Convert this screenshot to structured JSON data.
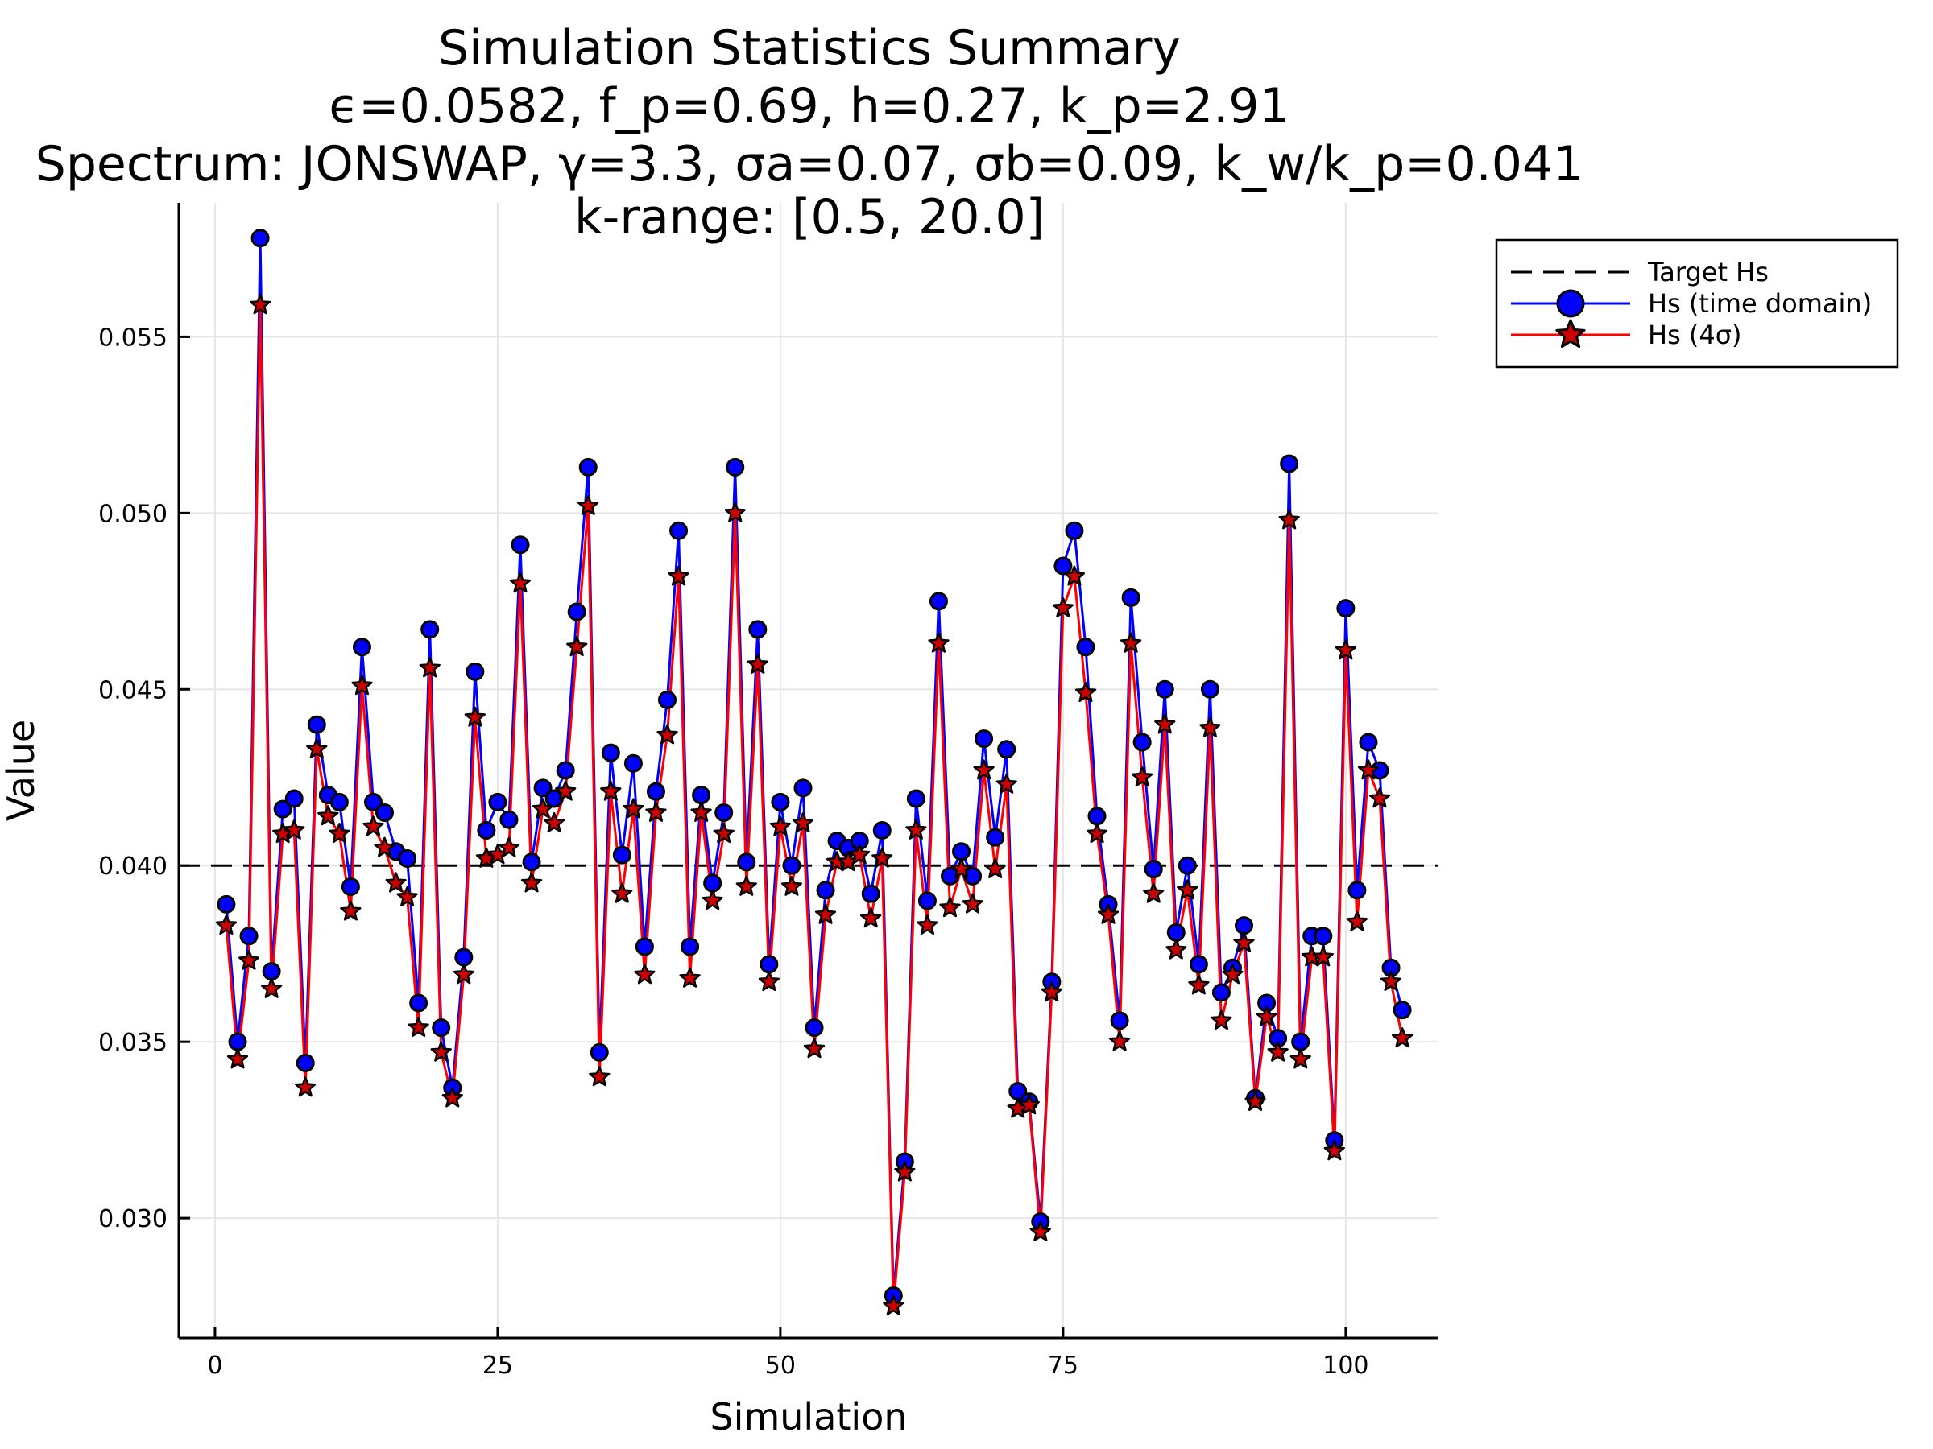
{
  "chart_data": {
    "type": "line",
    "title_lines": [
      "Simulation Statistics Summary",
      "ϵ=0.0582, f_p=0.69, h=0.27, k_p=2.91",
      "Spectrum: JONSWAP, γ=3.3, σa=0.07, σb=0.09, k_w/k_p=0.041",
      "k-range: [0.5, 20.0]"
    ],
    "xlabel": "Simulation",
    "ylabel": "Value",
    "xlim": [
      -3.2,
      108.2
    ],
    "ylim": [
      0.0266,
      0.0588
    ],
    "x_ticks": [
      0,
      25,
      50,
      75,
      100
    ],
    "x_tick_labels": [
      "0",
      "25",
      "50",
      "75",
      "100"
    ],
    "y_ticks": [
      0.03,
      0.035,
      0.04,
      0.045,
      0.05,
      0.055
    ],
    "y_tick_labels": [
      "0.030",
      "0.035",
      "0.040",
      "0.045",
      "0.050",
      "0.055"
    ],
    "grid": true,
    "legend_position": "outside-top-right",
    "reference_line": {
      "name": "Target Hs",
      "y": 0.04,
      "color": "#000000",
      "style": "dashed"
    },
    "series": [
      {
        "name": "Hs (time domain)",
        "color": "#0000ff",
        "marker": "circle",
        "x": [
          1,
          2,
          3,
          4,
          5,
          6,
          7,
          8,
          9,
          10,
          11,
          12,
          13,
          14,
          15,
          16,
          17,
          18,
          19,
          20,
          21,
          22,
          23,
          24,
          25,
          26,
          27,
          28,
          29,
          30,
          31,
          32,
          33,
          34,
          35,
          36,
          37,
          38,
          39,
          40,
          41,
          42,
          43,
          44,
          45,
          46,
          47,
          48,
          49,
          50,
          51,
          52,
          53,
          54,
          55,
          56,
          57,
          58,
          59,
          60,
          61,
          62,
          63,
          64,
          65,
          66,
          67,
          68,
          69,
          70,
          71,
          72,
          73,
          74,
          75,
          76,
          77,
          78,
          79,
          80,
          81,
          82,
          83,
          84,
          85,
          86,
          87,
          88,
          89,
          90,
          91,
          92,
          93,
          94,
          95,
          96,
          97,
          98,
          99,
          100,
          101,
          102,
          103,
          104,
          105
        ],
        "values": [
          0.0389,
          0.035,
          0.038,
          0.0578,
          0.037,
          0.0416,
          0.0419,
          0.0344,
          0.044,
          0.042,
          0.0418,
          0.0394,
          0.0462,
          0.0418,
          0.0415,
          0.0404,
          0.0402,
          0.0361,
          0.0467,
          0.0354,
          0.0337,
          0.0374,
          0.0455,
          0.041,
          0.0418,
          0.0413,
          0.0491,
          0.0401,
          0.0422,
          0.0419,
          0.0427,
          0.0472,
          0.0513,
          0.0347,
          0.0432,
          0.0403,
          0.0429,
          0.0377,
          0.0421,
          0.0447,
          0.0495,
          0.0377,
          0.042,
          0.0395,
          0.0415,
          0.0513,
          0.0401,
          0.0467,
          0.0372,
          0.0418,
          0.04,
          0.0422,
          0.0354,
          0.0393,
          0.0407,
          0.0405,
          0.0407,
          0.0392,
          0.041,
          0.0278,
          0.0316,
          0.0419,
          0.039,
          0.0475,
          0.0397,
          0.0404,
          0.0397,
          0.0436,
          0.0408,
          0.0433,
          0.0336,
          0.0333,
          0.0299,
          0.0367,
          0.0485,
          0.0495,
          0.0462,
          0.0414,
          0.0389,
          0.0356,
          0.0476,
          0.0435,
          0.0399,
          0.045,
          0.0381,
          0.04,
          0.0372,
          0.045,
          0.0364,
          0.0371,
          0.0383,
          0.0334,
          0.0361,
          0.0351,
          0.0514,
          0.035,
          0.038,
          0.038,
          0.0322,
          0.0473,
          0.0393,
          0.0435,
          0.0427,
          0.0371,
          0.0359
        ]
      },
      {
        "name": "Hs (4σ)",
        "color": "#ff0000",
        "marker_fill": "#cc0000",
        "marker": "star",
        "x": [
          1,
          2,
          3,
          4,
          5,
          6,
          7,
          8,
          9,
          10,
          11,
          12,
          13,
          14,
          15,
          16,
          17,
          18,
          19,
          20,
          21,
          22,
          23,
          24,
          25,
          26,
          27,
          28,
          29,
          30,
          31,
          32,
          33,
          34,
          35,
          36,
          37,
          38,
          39,
          40,
          41,
          42,
          43,
          44,
          45,
          46,
          47,
          48,
          49,
          50,
          51,
          52,
          53,
          54,
          55,
          56,
          57,
          58,
          59,
          60,
          61,
          62,
          63,
          64,
          65,
          66,
          67,
          68,
          69,
          70,
          71,
          72,
          73,
          74,
          75,
          76,
          77,
          78,
          79,
          80,
          81,
          82,
          83,
          84,
          85,
          86,
          87,
          88,
          89,
          90,
          91,
          92,
          93,
          94,
          95,
          96,
          97,
          98,
          99,
          100,
          101,
          102,
          103,
          104,
          105
        ],
        "values": [
          0.0383,
          0.0345,
          0.0373,
          0.0559,
          0.0365,
          0.0409,
          0.041,
          0.0337,
          0.0433,
          0.0414,
          0.0409,
          0.0387,
          0.0451,
          0.0411,
          0.0405,
          0.0395,
          0.0391,
          0.0354,
          0.0456,
          0.0347,
          0.0334,
          0.0369,
          0.0442,
          0.0402,
          0.0403,
          0.0405,
          0.048,
          0.0395,
          0.0416,
          0.0412,
          0.0421,
          0.0462,
          0.0502,
          0.034,
          0.0421,
          0.0392,
          0.0416,
          0.0369,
          0.0415,
          0.0437,
          0.0482,
          0.0368,
          0.0415,
          0.039,
          0.0409,
          0.05,
          0.0394,
          0.0457,
          0.0367,
          0.0411,
          0.0394,
          0.0412,
          0.0348,
          0.0386,
          0.0401,
          0.0401,
          0.0403,
          0.0385,
          0.0402,
          0.0275,
          0.0313,
          0.041,
          0.0383,
          0.0463,
          0.0388,
          0.0399,
          0.0389,
          0.0427,
          0.0399,
          0.0423,
          0.0331,
          0.0332,
          0.0296,
          0.0364,
          0.0473,
          0.0482,
          0.0449,
          0.0409,
          0.0386,
          0.035,
          0.0463,
          0.0425,
          0.0392,
          0.044,
          0.0376,
          0.0393,
          0.0366,
          0.0439,
          0.0356,
          0.0369,
          0.0378,
          0.0333,
          0.0357,
          0.0347,
          0.0498,
          0.0345,
          0.0374,
          0.0374,
          0.0319,
          0.0461,
          0.0384,
          0.0427,
          0.0419,
          0.0367,
          0.0351
        ]
      }
    ]
  }
}
